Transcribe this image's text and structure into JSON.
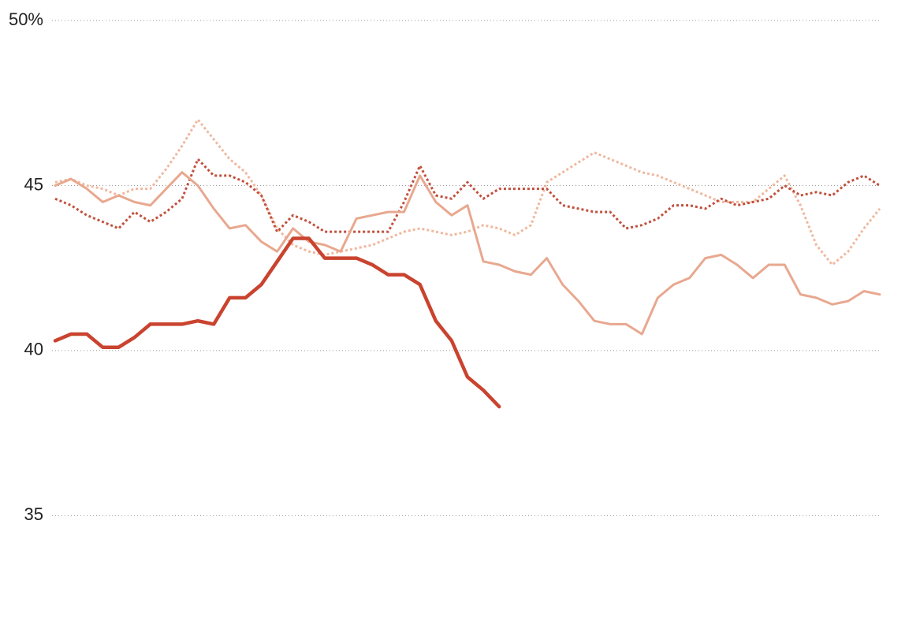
{
  "chart_data": {
    "type": "line",
    "categories": [
      null,
      null,
      null,
      null,
      null,
      null,
      null,
      null,
      null,
      null,
      null,
      null,
      null,
      null,
      null,
      null,
      null,
      null,
      null,
      null,
      null,
      null,
      null,
      null,
      null,
      null,
      null,
      null,
      null,
      null,
      null,
      null,
      null,
      null,
      null,
      null,
      null,
      null,
      null,
      null,
      null,
      null,
      null,
      null,
      null,
      null,
      null,
      null,
      null,
      null,
      null,
      null,
      null
    ],
    "ylim": [
      31.5,
      50
    ],
    "yticks": [
      35,
      40,
      45,
      {
        "value": 50,
        "label": "50%"
      }
    ],
    "grid": true,
    "series": [
      {
        "color": "#f0b89e",
        "dash": "dotted",
        "width": 3,
        "values": [
          45.1,
          45.2,
          45.0,
          44.9,
          44.7,
          44.9,
          44.9,
          45.5,
          46.2,
          47.0,
          46.4,
          45.8,
          45.4,
          44.7,
          43.7,
          43.2,
          43.0,
          42.9,
          43.0,
          43.1,
          43.2,
          43.4,
          43.6,
          43.7,
          43.6,
          43.5,
          43.6,
          43.8,
          43.7,
          43.5,
          43.8,
          45.1,
          45.4,
          45.7,
          46.0,
          45.8,
          45.6,
          45.4,
          45.3,
          45.1,
          44.9,
          44.7,
          44.5,
          44.5,
          44.5,
          44.9,
          45.3,
          44.4,
          43.2,
          42.6,
          43.0,
          43.7,
          44.3
        ]
      },
      {
        "color": "#c0503d",
        "dash": "dotted",
        "width": 3,
        "values": [
          44.6,
          44.4,
          44.1,
          43.9,
          43.7,
          44.2,
          43.9,
          44.2,
          44.6,
          45.8,
          45.3,
          45.3,
          45.1,
          44.7,
          43.6,
          44.1,
          43.9,
          43.6,
          43.6,
          43.6,
          43.6,
          43.6,
          44.5,
          45.6,
          44.7,
          44.6,
          45.1,
          44.6,
          44.9,
          44.9,
          44.9,
          44.9,
          44.4,
          44.3,
          44.2,
          44.2,
          43.7,
          43.8,
          44.0,
          44.4,
          44.4,
          44.3,
          44.6,
          44.4,
          44.5,
          44.6,
          45.0,
          44.7,
          44.8,
          44.7,
          45.1,
          45.3,
          45.0
        ]
      },
      {
        "color": "#e8a88f",
        "dash": "solid",
        "width": 3,
        "values": [
          45.0,
          45.2,
          44.9,
          44.5,
          44.7,
          44.5,
          44.4,
          44.9,
          45.4,
          45.0,
          44.3,
          43.7,
          43.8,
          43.3,
          43.0,
          43.7,
          43.3,
          43.2,
          43.0,
          44.0,
          44.1,
          44.2,
          44.2,
          45.3,
          44.5,
          44.1,
          44.4,
          42.7,
          42.6,
          42.4,
          42.3,
          42.8,
          42.0,
          41.5,
          40.9,
          40.8,
          40.8,
          40.5,
          41.6,
          42.0,
          42.2,
          42.8,
          42.9,
          42.6,
          42.2,
          42.6,
          42.6,
          41.7,
          41.6,
          41.4,
          41.5,
          41.8,
          41.7
        ]
      },
      {
        "color": "#c9432f",
        "dash": "solid",
        "width": 4.5,
        "values": [
          40.3,
          40.5,
          40.5,
          40.1,
          40.1,
          40.4,
          40.8,
          40.8,
          40.8,
          40.9,
          40.8,
          41.6,
          41.6,
          42.0,
          42.7,
          43.4,
          43.4,
          42.8,
          42.8,
          42.8,
          42.6,
          42.3,
          42.3,
          42.0,
          40.9,
          40.3,
          39.2,
          38.8,
          38.3,
          null,
          null,
          null,
          null,
          null,
          null,
          null,
          null,
          null,
          null,
          null,
          null,
          null,
          null,
          null,
          null,
          null,
          null,
          null,
          null,
          null,
          null,
          null,
          null
        ]
      }
    ]
  }
}
